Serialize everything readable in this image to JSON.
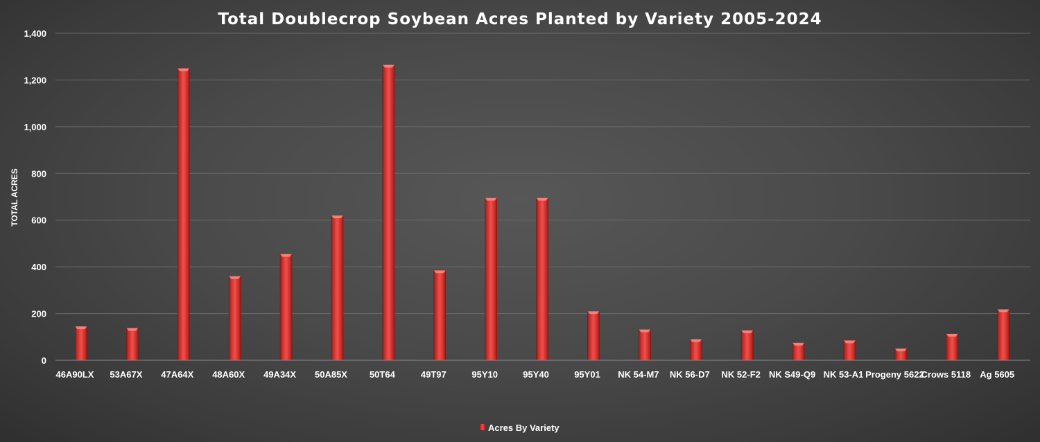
{
  "chart_data": {
    "type": "bar",
    "title": "Total Doublecrop Soybean Acres Planted by Variety 2005-2024",
    "ylabel": "TOTAL ACRES",
    "xlabel": "",
    "ylim": [
      0,
      1400
    ],
    "yticks": [
      0,
      200,
      400,
      600,
      800,
      1000,
      1200,
      1400
    ],
    "ytick_labels": [
      "0",
      "200",
      "400",
      "600",
      "800",
      "1,000",
      "1,200",
      "1,400"
    ],
    "grid": true,
    "legend_position": "bottom",
    "categories": [
      "46A90LX",
      "53A67X",
      "47A64X",
      "48A60X",
      "49A34X",
      "50A85X",
      "50T64",
      "49T97",
      "95Y10",
      "95Y40",
      "95Y01",
      "NK 54-M7",
      "NK 56-D7",
      "NK 52-F2",
      "NK S49-Q9",
      "NK 53-A1",
      "Progeny 5622",
      "Crows 5118",
      "Ag 5605"
    ],
    "x_bar_positions": [
      0.5,
      1.5,
      2.5,
      3.5,
      4.5,
      5.5,
      6.5,
      7.5,
      8.5,
      9.5,
      10.5,
      11.5,
      12.5,
      13.5,
      14.5,
      15.5,
      16.5,
      17.5,
      18.5
    ],
    "series": [
      {
        "name": "Acres By Variety",
        "color": "#d93a36",
        "values": [
          145,
          138,
          1250,
          360,
          455,
          620,
          1265,
          385,
          695,
          695,
          210,
          132,
          90,
          128,
          75,
          85,
          50,
          113,
          218
        ]
      }
    ]
  }
}
